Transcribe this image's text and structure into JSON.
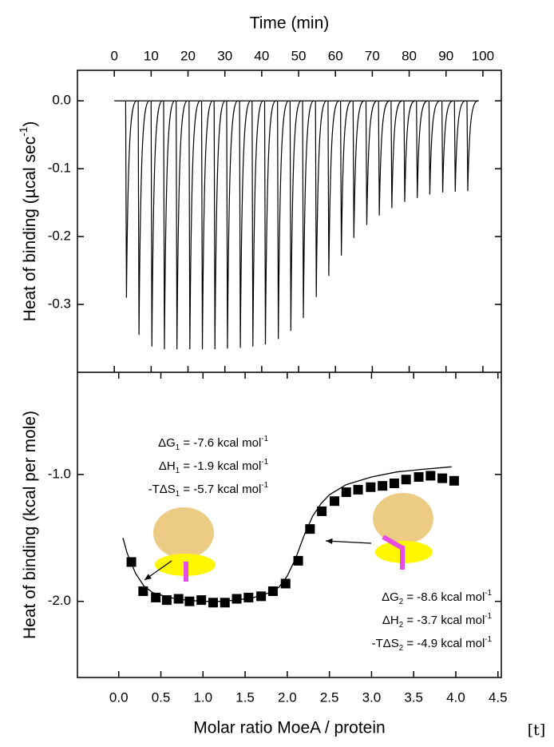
{
  "chart_data": [
    {
      "type": "line",
      "xlabel": "Time (min)",
      "ylabel": [
        "Heat of binding (µcal sec",
        "-1",
        ")"
      ],
      "xlim": [
        -10,
        105
      ],
      "xticks": [
        0,
        10,
        20,
        30,
        40,
        50,
        60,
        70,
        80,
        90,
        100
      ],
      "ylim": [
        -0.4,
        0.045
      ],
      "yticks": [
        {
          "value": 0,
          "label": "0.0"
        },
        {
          "value": -0.1,
          "label": "-0.1"
        },
        {
          "value": -0.2,
          "label": "-0.2"
        },
        {
          "value": -0.3,
          "label": "-0.3"
        }
      ],
      "color": "#000000",
      "x": [
        3.3,
        6.7,
        10.2,
        13.6,
        17.0,
        20.5,
        23.9,
        27.3,
        30.7,
        34.2,
        37.6,
        41.0,
        44.5,
        47.9,
        51.3,
        54.8,
        58.2,
        61.6,
        65.0,
        68.5,
        71.9,
        75.3,
        78.8,
        82.2,
        85.6,
        89.1,
        92.5,
        95.9
      ],
      "values": [
        -0.29,
        -0.345,
        -0.362,
        -0.366,
        -0.366,
        -0.366,
        -0.366,
        -0.366,
        -0.365,
        -0.364,
        -0.362,
        -0.359,
        -0.351,
        -0.339,
        -0.32,
        -0.289,
        -0.258,
        -0.228,
        -0.202,
        -0.183,
        -0.169,
        -0.158,
        -0.149,
        -0.143,
        -0.138,
        -0.135,
        -0.134,
        -0.133
      ]
    },
    {
      "type": "scatter",
      "xlabel": "Molar ratio MoeA / protein",
      "ylabel": [
        "Heat of binding (kcal per mole)"
      ],
      "xlim": [
        -0.49,
        4.54
      ],
      "xticks": [
        {
          "value": 0,
          "label": "0.0"
        },
        0.5,
        {
          "value": 1,
          "label": "1.0"
        },
        1.5,
        {
          "value": 2,
          "label": "2.0"
        },
        2.5,
        {
          "value": 3,
          "label": "3.0"
        },
        3.5,
        {
          "value": 4,
          "label": "4.0"
        },
        4.5
      ],
      "ylim": [
        -2.6,
        -0.195
      ],
      "yticks": [
        {
          "value": -1,
          "label": "-1.0"
        },
        {
          "value": -2,
          "label": "-2.0"
        }
      ],
      "color": "#000000",
      "x": [
        0.15,
        0.29,
        0.44,
        0.57,
        0.71,
        0.84,
        0.98,
        1.12,
        1.26,
        1.4,
        1.54,
        1.69,
        1.83,
        1.98,
        2.13,
        2.27,
        2.41,
        2.56,
        2.7,
        2.84,
        2.99,
        3.13,
        3.27,
        3.41,
        3.56,
        3.7,
        3.84,
        3.98
      ],
      "values": [
        -1.69,
        -1.92,
        -1.97,
        -1.99,
        -1.98,
        -2.0,
        -1.99,
        -2.01,
        -2.01,
        -1.98,
        -1.97,
        -1.96,
        -1.92,
        -1.86,
        -1.68,
        -1.43,
        -1.29,
        -1.21,
        -1.14,
        -1.12,
        -1.1,
        -1.09,
        -1.07,
        -1.04,
        -1.02,
        -1.01,
        -1.03,
        -1.05
      ],
      "fit": {
        "x": [
          0.05,
          0.1,
          0.2,
          0.3,
          0.4,
          0.6,
          0.8,
          1.0,
          1.2,
          1.4,
          1.6,
          1.8,
          1.9,
          2.0,
          2.1,
          2.2,
          2.3,
          2.4,
          2.5,
          2.7,
          3.0,
          3.3,
          3.6,
          3.95
        ],
        "values": [
          -1.5,
          -1.62,
          -1.78,
          -1.88,
          -1.93,
          -1.97,
          -1.99,
          -2.0,
          -2.0,
          -1.99,
          -1.97,
          -1.93,
          -1.89,
          -1.8,
          -1.66,
          -1.48,
          -1.33,
          -1.23,
          -1.16,
          -1.08,
          -1.02,
          -0.98,
          -0.96,
          -0.94
        ]
      },
      "annotations": [
        {
          "lines": [
            [
              "ΔG",
              "1",
              " = -7.6 kcal mol",
              "-1"
            ],
            [
              "ΔH",
              "1",
              " = -1.9 kcal mol",
              "-1"
            ],
            [
              "-TΔS",
              "1",
              " = -5.7 kcal mol",
              "-1"
            ]
          ]
        },
        {
          "lines": [
            [
              "ΔG",
              "2",
              " = -8.6 kcal mol",
              "-1"
            ],
            [
              "ΔH",
              "2",
              " = -3.7 kcal mol",
              "-1"
            ],
            [
              "-TΔS",
              "2",
              " = -4.9 kcal mol",
              "-1"
            ]
          ]
        }
      ]
    }
  ],
  "corner_label": "[t]"
}
